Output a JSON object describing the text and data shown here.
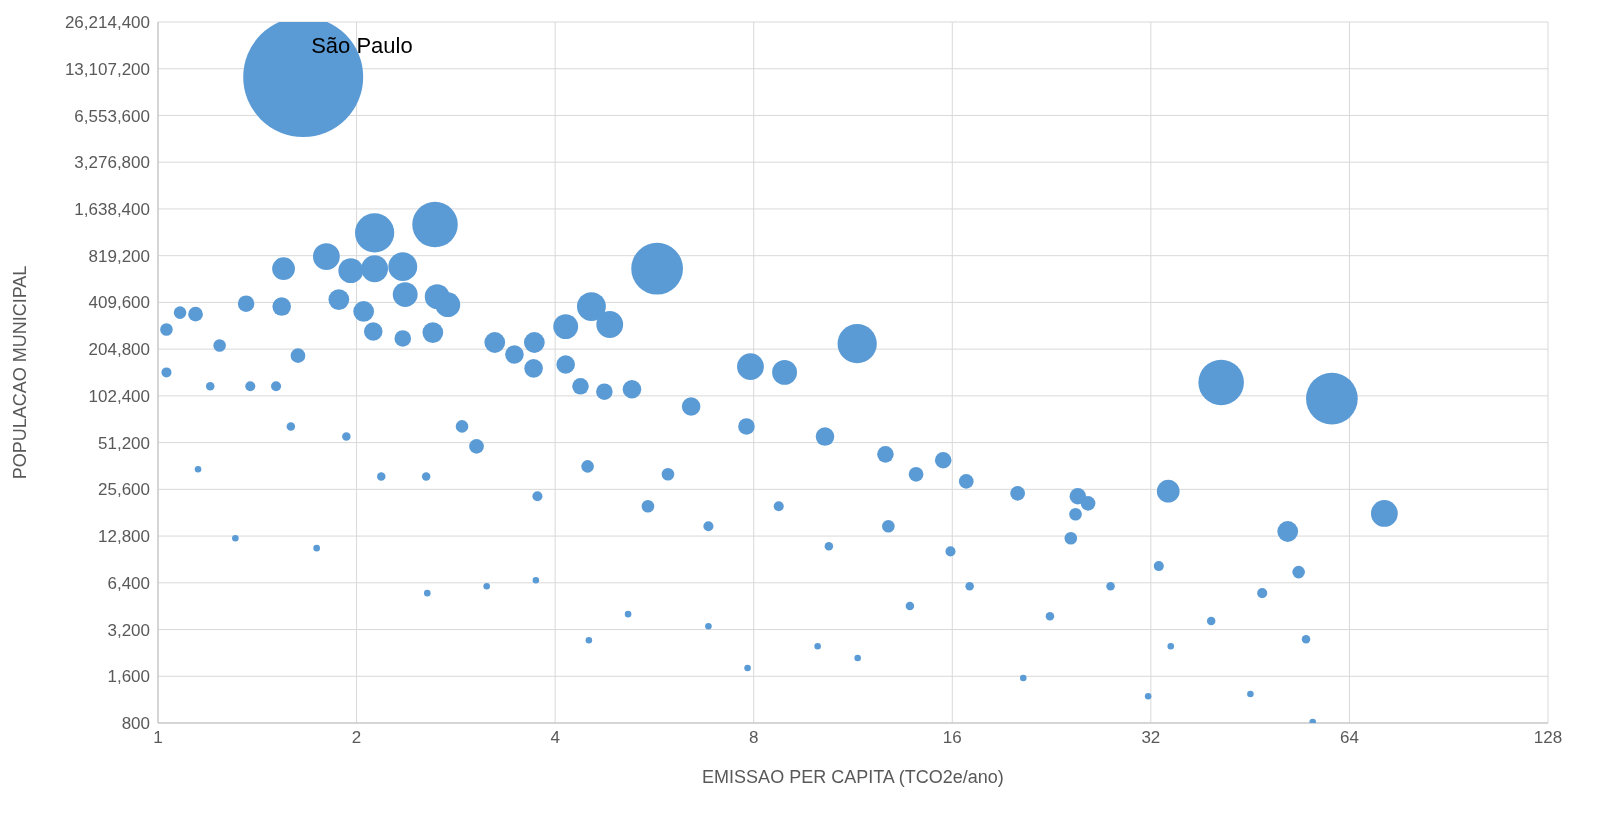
{
  "chart_data": {
    "type": "bubble",
    "xlabel": "EMISSAO PER CAPITA (TCO2e/ano)",
    "ylabel": "POPULACAO MUNICIPAL",
    "color": "#5b9bd5",
    "marker": "circle",
    "log": "xy",
    "grid": true,
    "legend": false,
    "xlim": [
      1,
      128
    ],
    "xticks": [
      1,
      2,
      4,
      8,
      16,
      32,
      64,
      128
    ],
    "ylim": [
      800,
      26214400
    ],
    "yticks": [
      {
        "value": 800,
        "label": "800"
      },
      {
        "value": 1600,
        "label": "1,600"
      },
      {
        "value": 3200,
        "label": "3,200"
      },
      {
        "value": 6400,
        "label": "6,400"
      },
      {
        "value": 12800,
        "label": "12,800"
      },
      {
        "value": 25600,
        "label": "25,600"
      },
      {
        "value": 51200,
        "label": "51,200"
      },
      {
        "value": 102400,
        "label": "102,400"
      },
      {
        "value": 204800,
        "label": "204,800"
      },
      {
        "value": 409600,
        "label": "409,600"
      },
      {
        "value": 819200,
        "label": "819,200"
      },
      {
        "value": 1638400,
        "label": "1,638,400"
      },
      {
        "value": 3276800,
        "label": "3,276,800"
      },
      {
        "value": 6553600,
        "label": "6,553,600"
      },
      {
        "value": 13107200,
        "label": "13,107,200"
      },
      {
        "value": 26214400,
        "label": "26,214,400"
      }
    ],
    "annotations": [
      {
        "text": "São Paulo",
        "x": 1.66,
        "y": 11600000
      }
    ],
    "x": [
      1.66,
      2.63,
      2.13,
      5.71,
      11.48,
      40.9,
      60.2,
      72.3,
      51.6,
      34.0,
      7.91,
      8.91,
      4.54,
      4.84,
      4.15,
      1.8,
      1.96,
      2.13,
      2.35,
      1.55,
      2.65,
      2.75,
      2.37,
      1.88,
      2.05,
      1.54,
      1.36,
      3.24,
      3.72,
      3.47,
      4.15,
      3.71,
      2.61,
      2.35,
      2.12,
      1.03,
      1.08,
      1.14,
      1.24,
      1.03,
      1.63,
      6.43,
      7.8,
      5.23,
      4.75,
      4.37,
      10.26,
      12.67,
      15.5,
      16.8,
      14.1,
      20.1,
      24.8,
      25.7,
      24.6,
      24.2,
      32.9,
      47.2,
      53.6,
      55.0,
      56.3,
      45.3,
      31.7,
      20.5,
      11.5,
      7.83,
      4.5,
      3.74,
      1.31,
      1.15,
      1.74,
      2.56,
      3.15,
      5.16,
      6.83,
      10.0,
      13.8,
      17.0,
      22.5,
      6.83,
      5.53,
      8.73,
      10.4,
      12.8,
      15.9,
      2.89,
      3.04,
      2.55,
      2.18,
      1.93,
      1.59,
      1.38,
      1.51,
      1.2,
      3.76,
      4.48,
      5.93,
      27.8,
      34.3,
      39.5
    ],
    "values": [
      11600000,
      1300000,
      1150000,
      675000,
      222000,
      125000,
      98300,
      17900,
      13700,
      24900,
      158000,
      145000,
      385000,
      295000,
      286000,
      808000,
      656000,
      675000,
      696000,
      675000,
      446000,
      396000,
      460000,
      427000,
      358000,
      385000,
      402000,
      226000,
      226000,
      189000,
      163000,
      154000,
      262000,
      240000,
      266000,
      274000,
      352000,
      344000,
      216000,
      145000,
      186000,
      87400,
      65100,
      113000,
      109000,
      118000,
      56000,
      43000,
      39400,
      28800,
      32000,
      24100,
      23100,
      20800,
      17700,
      12400,
      8200,
      5490,
      7500,
      2770,
      811,
      1230,
      1190,
      1560,
      2100,
      1810,
      2730,
      6650,
      12400,
      34500,
      10700,
      5490,
      6080,
      4020,
      3360,
      2500,
      4530,
      6080,
      3900,
      14800,
      19900,
      19900,
      11000,
      14800,
      10200,
      65100,
      48400,
      31000,
      31000,
      56000,
      65100,
      118000,
      118000,
      118000,
      23100,
      36000,
      32000,
      6080,
      2500,
      3630
    ],
    "sizes": [
      1,
      0.144,
      0.107,
      0.186,
      0.107,
      0.144,
      0.186,
      0.05,
      0.03,
      0.036,
      0.05,
      0.043,
      0.058,
      0.05,
      0.043,
      0.05,
      0.043,
      0.05,
      0.058,
      0.036,
      0.043,
      0.043,
      0.043,
      0.03,
      0.03,
      0.024,
      0.019,
      0.03,
      0.03,
      0.024,
      0.024,
      0.024,
      0.03,
      0.019,
      0.024,
      0.011,
      0.011,
      0.015,
      0.011,
      0.007,
      0.015,
      0.024,
      0.019,
      0.024,
      0.019,
      0.019,
      0.024,
      0.019,
      0.019,
      0.015,
      0.015,
      0.015,
      0.019,
      0.015,
      0.011,
      0.011,
      0.007,
      0.007,
      0.011,
      0.005,
      0.003,
      0.003,
      0.003,
      0.003,
      0.003,
      0.003,
      0.003,
      0.003,
      0.003,
      0.003,
      0.003,
      0.003,
      0.003,
      0.003,
      0.003,
      0.003,
      0.005,
      0.005,
      0.005,
      0.007,
      0.011,
      0.007,
      0.005,
      0.011,
      0.007,
      0.011,
      0.015,
      0.005,
      0.005,
      0.005,
      0.005,
      0.007,
      0.007,
      0.005,
      0.007,
      0.011,
      0.011,
      0.005,
      0.003,
      0.005
    ]
  }
}
